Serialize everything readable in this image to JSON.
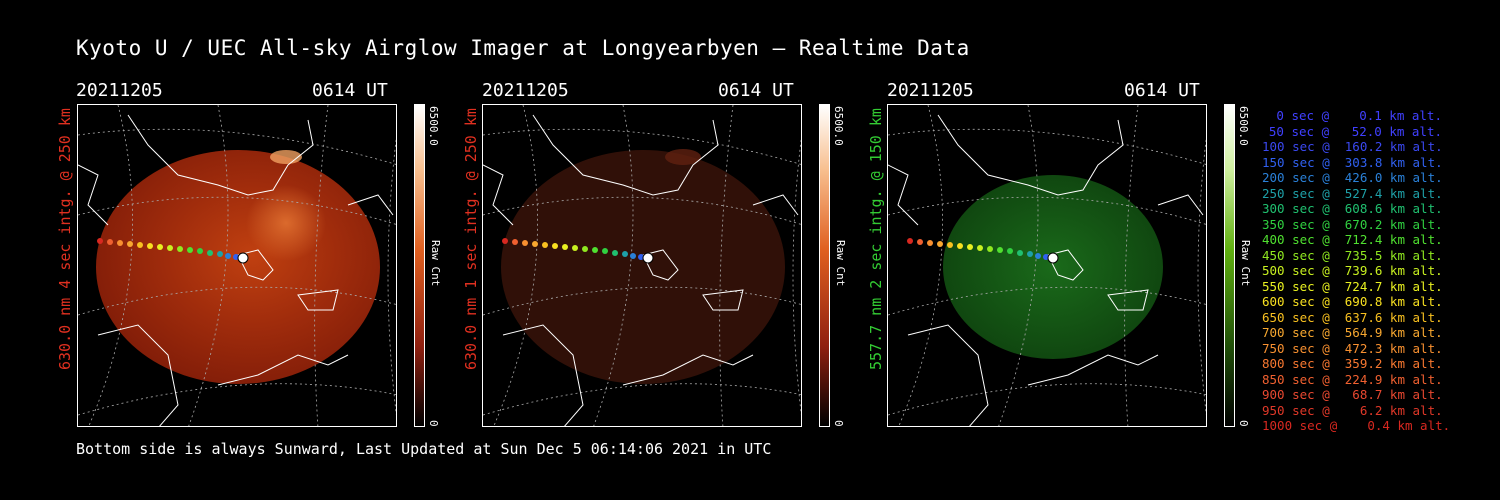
{
  "title": "Kyoto U / UEC All-sky Airglow Imager at Longyearbyen — Realtime Data",
  "footer": "Bottom side is always Sunward, Last Updated at Sun Dec  5 06:14:06 2021 in UTC",
  "colors": {
    "red_text": "#e03020",
    "green_text": "#33cc33"
  },
  "panels": [
    {
      "date": "20211205",
      "time": "0614 UT",
      "side_label": "630.0 nm 4 sec intg. @ 250 km",
      "label_color": "#e03020",
      "cb_max": "6500.0",
      "cb_min": "0",
      "cb_label": "Raw Cnt",
      "glow": "red"
    },
    {
      "date": "20211205",
      "time": "0614 UT",
      "side_label": "630.0 nm 1 sec intg. @ 250 km",
      "label_color": "#e03020",
      "cb_max": "6500.0",
      "cb_min": "0",
      "cb_label": "Raw Cnt",
      "glow": "dim"
    },
    {
      "date": "20211205",
      "time": "0614 UT",
      "side_label": "557.7 nm 2 sec intg. @ 150 km",
      "label_color": "#33cc33",
      "cb_max": "6500.0",
      "cb_min": "0",
      "cb_label": "Raw Cnt",
      "glow": "green"
    }
  ],
  "legend": [
    {
      "text": "0 sec @    0.1 km alt.",
      "color": "#4040ff"
    },
    {
      "text": "50 sec @   52.0 km alt.",
      "color": "#4040ff"
    },
    {
      "text": "100 sec @  160.2 km alt.",
      "color": "#3a48f0"
    },
    {
      "text": "150 sec @  303.8 km alt.",
      "color": "#3060f0"
    },
    {
      "text": "200 sec @  426.0 km alt.",
      "color": "#2a80d8"
    },
    {
      "text": "250 sec @  527.4 km alt.",
      "color": "#1ea0a8"
    },
    {
      "text": "300 sec @  608.6 km alt.",
      "color": "#20c070"
    },
    {
      "text": "350 sec @  670.2 km alt.",
      "color": "#30d040"
    },
    {
      "text": "400 sec @  712.4 km alt.",
      "color": "#50e030"
    },
    {
      "text": "450 sec @  735.5 km alt.",
      "color": "#90e820"
    },
    {
      "text": "500 sec @  739.6 km alt.",
      "color": "#c8f020"
    },
    {
      "text": "550 sec @  724.7 km alt.",
      "color": "#e8f020"
    },
    {
      "text": "600 sec @  690.8 km alt.",
      "color": "#f8e020"
    },
    {
      "text": "650 sec @  637.6 km alt.",
      "color": "#f8c020"
    },
    {
      "text": "700 sec @  564.9 km alt.",
      "color": "#f8a830"
    },
    {
      "text": "750 sec @  472.3 km alt.",
      "color": "#f89030"
    },
    {
      "text": "800 sec @  359.2 km alt.",
      "color": "#f87830"
    },
    {
      "text": "850 sec @  224.9 km alt.",
      "color": "#f06030"
    },
    {
      "text": "900 sec @   68.7 km alt.",
      "color": "#e84830"
    },
    {
      "text": "950 sec @    6.2 km alt.",
      "color": "#e03828"
    },
    {
      "text": "1000 sec @    0.4 km alt.",
      "color": "#d82820"
    }
  ]
}
